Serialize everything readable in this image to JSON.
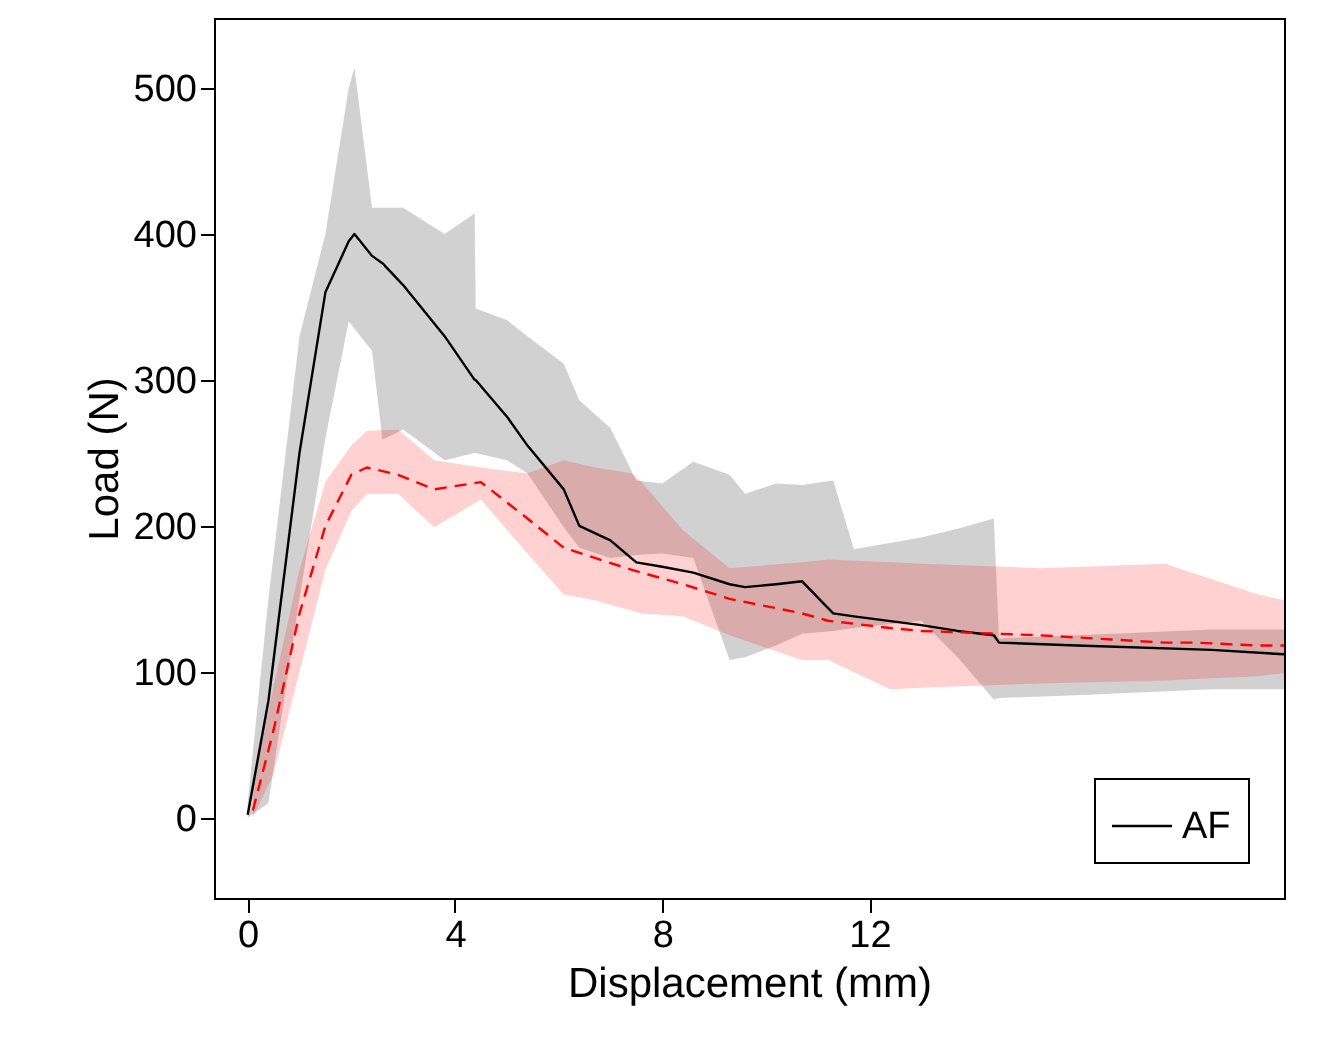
{
  "chart_data": {
    "type": "line",
    "xlabel": "Displacement (mm)",
    "ylabel": "Load (N)",
    "xlim": [
      -0.65,
      20
    ],
    "ylim": [
      -55,
      548
    ],
    "xticks": [
      0,
      4,
      8,
      12
    ],
    "yticks": [
      0,
      100,
      200,
      300,
      400,
      500
    ],
    "grid": false,
    "legend": "bottom right",
    "marker": "none",
    "series": [
      {
        "name": "AF",
        "color": "#000000",
        "line_style": "solid",
        "x": [
          0,
          0.4,
          1.0,
          1.5,
          1.95,
          2.06,
          2.4,
          2.6,
          3.0,
          3.8,
          4.38,
          4.4,
          5.0,
          5.4,
          6.1,
          6.4,
          7.0,
          7.5,
          8.0,
          8.6,
          9.3,
          9.6,
          10.2,
          10.7,
          11.3,
          11.7,
          13.0,
          13.7,
          14.4,
          14.5,
          16,
          18.6,
          20
        ],
        "values": [
          2,
          80,
          250,
          360,
          395,
          400,
          385,
          380,
          365,
          330,
          300,
          300,
          275,
          255,
          225,
          200,
          190,
          175,
          172,
          168,
          160,
          158,
          160,
          162,
          140,
          138,
          132,
          128,
          125,
          120,
          118,
          115,
          112
        ],
        "lower": [
          0,
          10,
          150,
          260,
          340,
          335,
          320,
          259,
          266,
          245,
          250,
          250,
          245,
          236,
          199,
          185,
          178,
          180,
          181,
          178,
          108,
          110,
          118,
          126,
          128,
          130,
          135,
          110,
          81,
          82,
          84,
          88,
          88
        ],
        "upper": [
          10,
          150,
          330,
          400,
          500,
          514,
          418,
          418,
          418,
          400,
          414,
          349,
          341,
          330,
          311,
          286,
          267,
          231,
          229,
          244,
          235,
          222,
          229,
          228,
          231,
          184,
          192,
          198,
          205,
          123,
          125,
          129,
          129
        ]
      },
      {
        "color": "#ff0000",
        "line_style": "dashed",
        "x": [
          0.1,
          0.5,
          1.0,
          1.5,
          2.0,
          2.3,
          2.9,
          3.6,
          4.5,
          5.4,
          6.1,
          6.7,
          7.4,
          7.6,
          8.4,
          9.3,
          10.7,
          11.2,
          12.4,
          13,
          15.3,
          17.7,
          18.3,
          19.5,
          20
        ],
        "values": [
          5,
          60,
          140,
          200,
          235,
          240,
          235,
          225,
          230,
          205,
          185,
          178,
          170,
          168,
          160,
          150,
          140,
          135,
          130,
          128,
          125,
          120,
          120,
          118,
          118
        ],
        "lower": [
          0,
          30,
          100,
          170,
          210,
          222,
          222,
          199,
          218,
          181,
          153,
          149,
          142,
          140,
          138,
          125,
          108,
          108,
          88,
          89,
          92,
          94,
          95,
          97,
          99
        ],
        "upper": [
          20,
          90,
          170,
          230,
          255,
          265,
          266,
          245,
          240,
          236,
          245,
          240,
          236,
          230,
          197,
          171,
          175,
          177,
          175,
          174,
          171,
          174,
          167,
          153,
          149
        ]
      }
    ]
  }
}
